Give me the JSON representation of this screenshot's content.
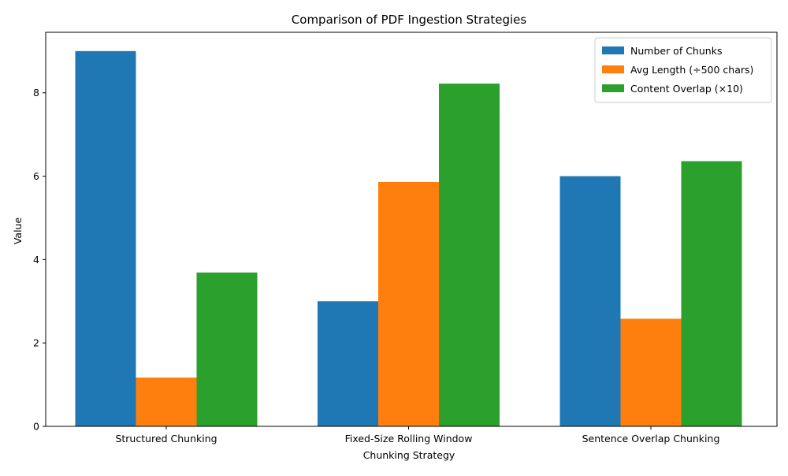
{
  "chart_data": {
    "type": "bar",
    "title": "Comparison of PDF Ingestion Strategies",
    "xlabel": "Chunking Strategy",
    "ylabel": "Value",
    "categories": [
      "Structured Chunking",
      "Fixed-Size Rolling Window",
      "Sentence Overlap Chunking"
    ],
    "series": [
      {
        "name": "Number of Chunks",
        "color": "#1f77b4",
        "values": [
          9,
          3,
          6
        ]
      },
      {
        "name": "Avg Length (÷500 chars)",
        "color": "#ff7f0e",
        "values": [
          1.17,
          5.86,
          2.58
        ]
      },
      {
        "name": "Content Overlap (×10)",
        "color": "#2ca02c",
        "values": [
          3.69,
          8.22,
          6.36
        ]
      }
    ],
    "ylim": [
      0,
      9.45
    ],
    "yticks": [
      0,
      2,
      4,
      6,
      8
    ],
    "legend_position": "top-right",
    "grid": false
  }
}
